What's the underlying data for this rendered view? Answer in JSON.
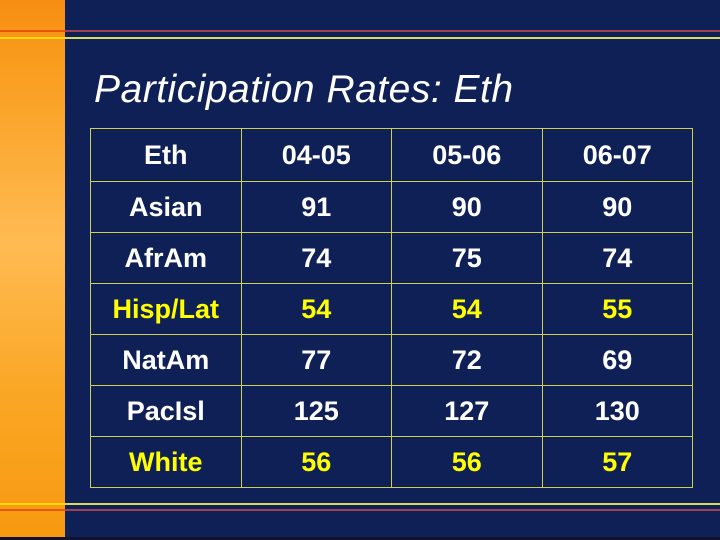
{
  "slide": {
    "title": "Participation Rates: Eth"
  },
  "table": {
    "corner_header": "Eth"
  },
  "chart_data": {
    "type": "table",
    "title": "Participation Rates: Eth",
    "categories": [
      "04-05",
      "05-06",
      "06-07"
    ],
    "series": [
      {
        "name": "Asian",
        "values": [
          91,
          90,
          90
        ]
      },
      {
        "name": "AfrAm",
        "values": [
          74,
          75,
          74
        ]
      },
      {
        "name": "Hisp/Lat",
        "values": [
          54,
          54,
          55
        ]
      },
      {
        "name": "NatAm",
        "values": [
          77,
          72,
          69
        ]
      },
      {
        "name": "PacIsl",
        "values": [
          125,
          127,
          130
        ]
      },
      {
        "name": "White",
        "values": [
          56,
          56,
          57
        ]
      }
    ],
    "highlighted_rows": [
      "Hisp/Lat",
      "White"
    ],
    "layout_hints": {
      "grid": true,
      "header_row": true,
      "all_cells_centered": true
    }
  },
  "colors": {
    "background_navy": "#0f2056",
    "side_band_orange": "#f99d1e",
    "side_band_orange_light": "#ffbb52",
    "table_border_yellow_green": "#cdd14e",
    "text_white": "#ffffff",
    "highlight_text_yellow": "#ffff00",
    "accent_line_red": "#a04053",
    "accent_line_yellow": "#d9d95c",
    "accent_line_red_bright": "#e8560e",
    "accent_line_yellow_bright": "#ffd90a"
  }
}
